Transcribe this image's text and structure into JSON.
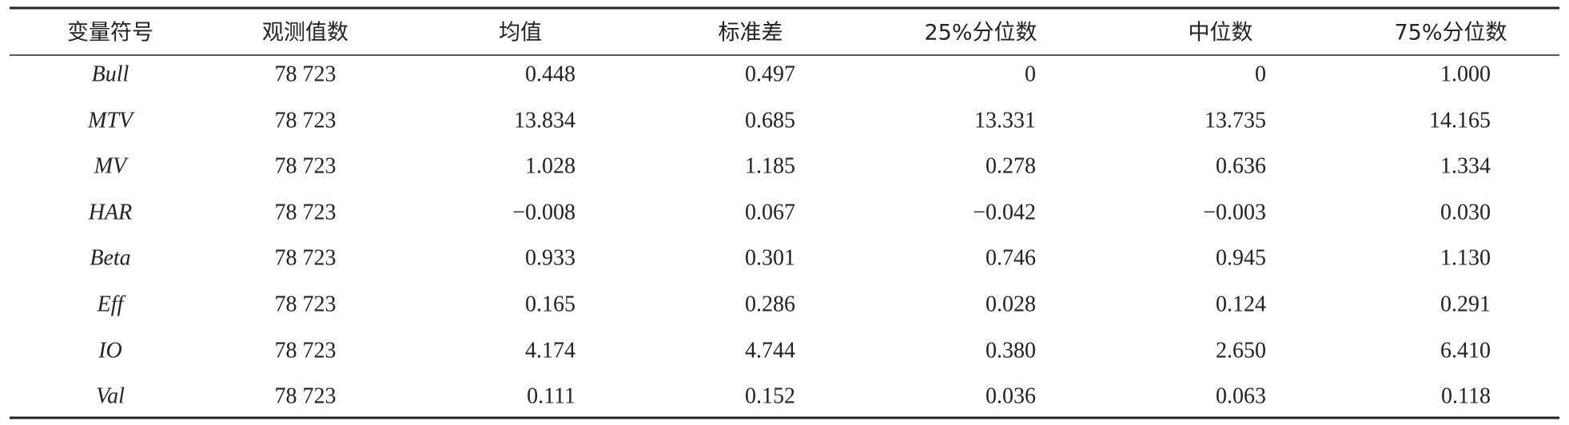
{
  "table": {
    "header": [
      "变量符号",
      "观测值数",
      "均值",
      "标准差",
      "25%分位数",
      "中位数",
      "75%分位数"
    ],
    "rows": [
      [
        "Bull",
        "78 723",
        "0.448",
        "0.497",
        "0",
        "0",
        "1.000"
      ],
      [
        "MTV",
        "78 723",
        "13.834",
        "0.685",
        "13.331",
        "13.735",
        "14.165"
      ],
      [
        "MV",
        "78 723",
        "1.028",
        "1.185",
        "0.278",
        "0.636",
        "1.334"
      ],
      [
        "HAR",
        "78 723",
        "−0.008",
        "0.067",
        "−0.042",
        "−0.003",
        "0.030"
      ],
      [
        "Beta",
        "78 723",
        "0.933",
        "0.301",
        "0.746",
        "0.945",
        "1.130"
      ],
      [
        "Eff",
        "78 723",
        "0.165",
        "0.286",
        "0.028",
        "0.124",
        "0.291"
      ],
      [
        "IO",
        "78 723",
        "4.174",
        "4.744",
        "0.380",
        "2.650",
        "6.410"
      ],
      [
        "Val",
        "78 723",
        "0.111",
        "0.152",
        "0.036",
        "0.063",
        "0.118"
      ]
    ]
  }
}
